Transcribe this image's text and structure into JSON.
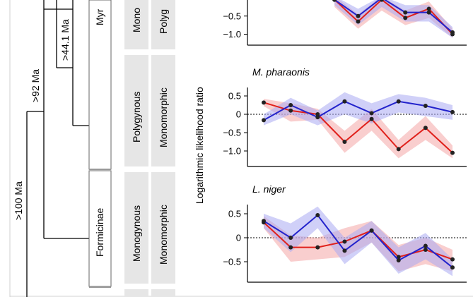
{
  "tree": {
    "ages": [
      ">100 Ma",
      ">92 Ma",
      ">44.1 Ma"
    ],
    "subfamilies": [
      "Myr",
      "Formicinae"
    ],
    "traits": {
      "top": [
        "Mono",
        "Polyg"
      ],
      "pharaonis": [
        "Polygynous",
        "Monomorphic"
      ],
      "niger": [
        "Monogynous",
        "Monomorphic"
      ]
    }
  },
  "colors": {
    "red": "#e0201b",
    "blue": "#2323cc",
    "red_band": "#f4a6a6",
    "blue_band": "#a9a9f2",
    "gray_box": "#e6e6e6"
  },
  "chart_data": {
    "type": "line",
    "ylabel": "Logarithmic likelihood ratio",
    "panels": [
      {
        "title": "",
        "yticks": [
          "-0.5",
          "-1.0"
        ],
        "ylim": [
          -1.15,
          0.05
        ],
        "series": [
          {
            "color": "red",
            "values": [
              null,
              null,
              null,
              -0.05,
              -0.65,
              -0.05,
              -0.55,
              -0.3,
              -1.0
            ],
            "lower": [
              null,
              null,
              null,
              -0.25,
              -0.85,
              -0.35,
              -0.75,
              -0.55,
              -1.1
            ],
            "upper": [
              null,
              null,
              null,
              0.05,
              -0.45,
              0.05,
              -0.35,
              -0.1,
              -0.85
            ]
          },
          {
            "color": "blue",
            "values": [
              null,
              null,
              null,
              -0.05,
              -0.5,
              0.0,
              -0.4,
              -0.4,
              -0.95
            ],
            "lower": [
              null,
              null,
              null,
              -0.2,
              -0.75,
              -0.25,
              -0.65,
              -0.65,
              -1.1
            ],
            "upper": [
              null,
              null,
              null,
              0.05,
              -0.3,
              0.05,
              -0.2,
              -0.2,
              -0.8
            ]
          }
        ]
      },
      {
        "title": "M. pharaonis",
        "yticks": [
          "0.5",
          "0",
          "-0.5",
          "-1.0"
        ],
        "ylim": [
          -1.2,
          0.7
        ],
        "series": [
          {
            "color": "red",
            "values": [
              0.32,
              0.1,
              0.0,
              -0.75,
              -0.13,
              -0.95,
              -0.37,
              -1.05
            ],
            "lower": [
              0.22,
              -0.2,
              -0.15,
              -1.05,
              -0.45,
              -1.2,
              -0.7,
              -1.2
            ],
            "upper": [
              0.42,
              0.3,
              0.15,
              -0.45,
              0.15,
              -0.7,
              -0.05,
              -0.85
            ]
          },
          {
            "color": "blue",
            "values": [
              -0.16,
              0.25,
              -0.08,
              0.35,
              0.03,
              0.35,
              0.23,
              0.06
            ],
            "lower": [
              -0.3,
              0.0,
              -0.3,
              0.0,
              -0.25,
              0.05,
              -0.05,
              -0.15
            ],
            "upper": [
              0.0,
              0.45,
              0.1,
              0.6,
              0.3,
              0.55,
              0.45,
              0.25
            ]
          }
        ]
      },
      {
        "title": "L. niger",
        "yticks": [
          "0.5",
          "0",
          "-0.5"
        ],
        "ylim": [
          -0.85,
          0.7
        ],
        "series": [
          {
            "color": "red",
            "values": [
              0.32,
              -0.2,
              -0.2,
              -0.08,
              0.15,
              -0.4,
              -0.25,
              -0.45
            ],
            "lower": [
              0.2,
              -0.5,
              -0.45,
              -0.4,
              -0.1,
              -0.7,
              -0.55,
              -0.7
            ],
            "upper": [
              0.45,
              0.05,
              0.0,
              0.2,
              0.35,
              -0.15,
              0.0,
              -0.25
            ]
          },
          {
            "color": "blue",
            "values": [
              0.35,
              0.0,
              0.47,
              -0.27,
              0.15,
              -0.47,
              -0.17,
              -0.62
            ],
            "lower": [
              0.2,
              -0.3,
              0.2,
              -0.55,
              -0.1,
              -0.75,
              -0.45,
              -0.8
            ],
            "upper": [
              0.5,
              0.3,
              0.65,
              0.0,
              0.35,
              -0.2,
              0.1,
              -0.45
            ]
          }
        ]
      }
    ]
  }
}
